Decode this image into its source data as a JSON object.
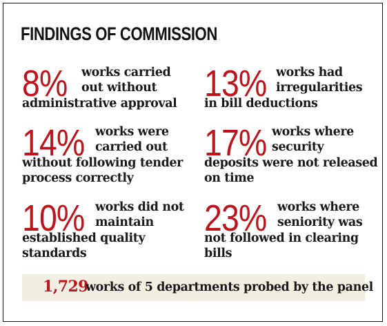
{
  "title": "FINDINGS OF COMMISSION",
  "stats": [
    {
      "pct": "8%",
      "lines": [
        "works carried",
        "out without",
        "administrative approval"
      ]
    },
    {
      "pct": "13%",
      "lines": [
        "works had",
        "irregularities",
        "in bill deductions"
      ]
    },
    {
      "pct": "14%",
      "lines": [
        "works were",
        "carried out",
        "without following tender",
        "process correctly"
      ]
    },
    {
      "pct": "17%",
      "lines": [
        "works where",
        "security",
        "deposits were not released",
        "on time"
      ]
    },
    {
      "pct": "10%",
      "lines": [
        "works did not",
        "maintain",
        "established quality",
        "standards"
      ]
    },
    {
      "pct": "23%",
      "lines": [
        "works where",
        "seniority was",
        "not followed in clearing",
        "bills"
      ]
    }
  ],
  "banner": {
    "count": "1,729",
    "text": "works of 5 departments probed by the panel"
  },
  "colors": {
    "accent": "#c0141c",
    "text": "#1a1a1a",
    "banner_bg": "#f3eee2"
  }
}
